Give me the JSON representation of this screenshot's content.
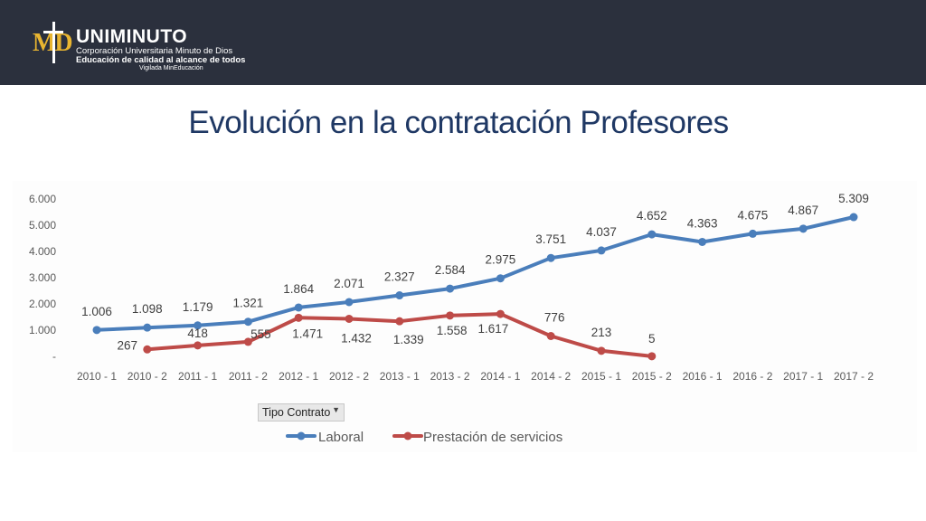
{
  "header": {
    "brand_mark": "MD",
    "brand_name": "UNIMINUTO",
    "brand_line1": "Corporación Universitaria Minuto de Dios",
    "brand_line2": "Educación de calidad al alcance de todos",
    "brand_line3": "Vigilada MinEducación",
    "bg_color": "#2b303d",
    "accent_color": "#e9b531"
  },
  "page": {
    "title": "Evolución en la contratación Profesores"
  },
  "filter": {
    "label": "Tipo Contrato",
    "icon": "dropdown-arrow-icon"
  },
  "chart_data": {
    "type": "line",
    "categories": [
      "2010 - 1",
      "2010 - 2",
      "2011 - 1",
      "2011 - 2",
      "2012 - 1",
      "2012 - 2",
      "2013 - 1",
      "2013 - 2",
      "2014 - 1",
      "2014 - 2",
      "2015 - 1",
      "2015 - 2",
      "2016 - 1",
      "2016 - 2",
      "2017 - 1",
      "2017 - 2"
    ],
    "series": [
      {
        "name": "Laboral",
        "color": "#4a7ebb",
        "values": [
          1006,
          1098,
          1179,
          1321,
          1864,
          2071,
          2327,
          2584,
          2975,
          3751,
          4037,
          4652,
          4363,
          4675,
          4867,
          5309
        ],
        "labels": [
          "1.006",
          "1.098",
          "1.179",
          "1.321",
          "1.864",
          "2.071",
          "2.327",
          "2.584",
          "2.975",
          "3.751",
          "4.037",
          "4.652",
          "4.363",
          "4.675",
          "4.867",
          "5.309"
        ]
      },
      {
        "name": "Prestación de servicios",
        "color": "#be4b48",
        "values": [
          null,
          267,
          418,
          555,
          1471,
          1432,
          1339,
          1558,
          1617,
          776,
          213,
          5,
          null,
          null,
          null,
          null
        ],
        "labels": [
          "",
          "267",
          "418",
          "555",
          "1.471",
          "1.432",
          "1.339",
          "1.558",
          "1.617",
          "776",
          "213",
          "5",
          "",
          "",
          "",
          ""
        ]
      }
    ],
    "y_ticks": [
      0,
      1000,
      2000,
      3000,
      4000,
      5000,
      6000
    ],
    "y_tick_labels": [
      "-",
      "1.000",
      "2.000",
      "3.000",
      "4.000",
      "5.000",
      "6.000"
    ],
    "ylim": [
      0,
      6000
    ],
    "grid": false,
    "legend": "bottom"
  }
}
